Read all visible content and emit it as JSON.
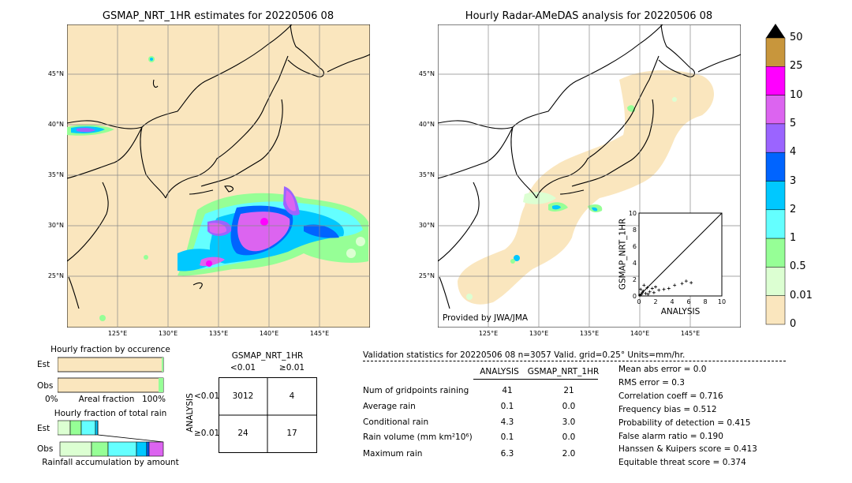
{
  "left_map": {
    "title": "GSMAP_NRT_1HR estimates for 20220506 08",
    "lat_labels": [
      "45°N",
      "40°N",
      "35°N",
      "30°N",
      "25°N"
    ],
    "lon_labels": [
      "125°E",
      "130°E",
      "135°E",
      "140°E",
      "145°E"
    ]
  },
  "right_map": {
    "title": "Hourly Radar-AMeDAS analysis for 20220506 08",
    "lat_labels": [
      "45°N",
      "40°N",
      "35°N",
      "30°N",
      "25°N"
    ],
    "lon_labels": [
      "125°E",
      "130°E",
      "135°E",
      "140°E",
      "145°E"
    ],
    "credit": "Provided by JWA/JMA",
    "inset": {
      "ylabel": "GSMAP_NRT_1HR",
      "xlabel": "ANALYSIS",
      "ticks": [
        "0",
        "2",
        "4",
        "6",
        "8",
        "10"
      ],
      "points": [
        [
          0.1,
          0.1
        ],
        [
          0.3,
          0.2
        ],
        [
          0.5,
          0.6
        ],
        [
          0.8,
          0.3
        ],
        [
          1.0,
          1.0
        ],
        [
          1.3,
          0.5
        ],
        [
          1.6,
          0.9
        ],
        [
          2.0,
          1.1
        ],
        [
          2.4,
          0.7
        ],
        [
          3.0,
          0.8
        ],
        [
          3.6,
          0.9
        ],
        [
          4.3,
          1.3
        ],
        [
          5.2,
          1.5
        ],
        [
          5.7,
          1.8
        ],
        [
          6.3,
          1.6
        ],
        [
          0.2,
          0.8
        ],
        [
          0.6,
          1.3
        ],
        [
          1.1,
          0.2
        ],
        [
          0.4,
          0.4
        ],
        [
          1.8,
          0.4
        ]
      ]
    }
  },
  "colorbar": {
    "labels": [
      "50",
      "25",
      "10",
      "5",
      "4",
      "3",
      "2",
      "1",
      "0.5",
      "0.01",
      "0"
    ],
    "colors": [
      "#c8963c",
      "#ff00ff",
      "#dc64f0",
      "#9b64ff",
      "#0064ff",
      "#00c8ff",
      "#64ffff",
      "#96ff96",
      "#dcffd2",
      "#fae6be"
    ]
  },
  "occurrence": {
    "title": "Hourly fraction by occurence",
    "est_label": "Est",
    "obs_label": "Obs",
    "axis_left": "0%",
    "axis_mid": "Areal fraction",
    "axis_right": "100%",
    "est_fraction": 0.985,
    "obs_fraction": 0.955
  },
  "total_rain": {
    "title": "Hourly fraction of total rain",
    "est_label": "Est",
    "obs_label": "Obs",
    "footer": "Rainfall accumulation by amount"
  },
  "contingency": {
    "title": "GSMAP_NRT_1HR",
    "col1": "<0.01",
    "col2": "≥0.01",
    "row_axis": "ANALYSIS",
    "row1": "<0.01",
    "row2": "≥0.01",
    "a": "3012",
    "b": "4",
    "c": "24",
    "d": "17"
  },
  "validation": {
    "header": "Validation statistics for 20220506 08  n=3057 Valid. grid=0.25°  Units=mm/hr.",
    "col_analysis": "ANALYSIS",
    "col_gsmap": "GSMAP_NRT_1HR",
    "rows": [
      {
        "label": "Num of gridpoints raining",
        "analysis": "41",
        "gsmap": "21"
      },
      {
        "label": "Average rain",
        "analysis": "0.1",
        "gsmap": "0.0"
      },
      {
        "label": "Conditional rain",
        "analysis": "4.3",
        "gsmap": "3.0"
      },
      {
        "label": "Rain volume (mm km²10⁶)",
        "analysis": "0.1",
        "gsmap": "0.0"
      },
      {
        "label": "Maximum rain",
        "analysis": "6.3",
        "gsmap": "2.0"
      }
    ],
    "scores": [
      "Mean abs error =    0.0",
      "RMS error =    0.3",
      "Correlation coeff =  0.716",
      "Frequency bias =  0.512",
      "Probability of detection =  0.415",
      "False alarm ratio =  0.190",
      "Hanssen & Kuipers score =  0.413",
      "Equitable threat score =  0.374"
    ]
  }
}
